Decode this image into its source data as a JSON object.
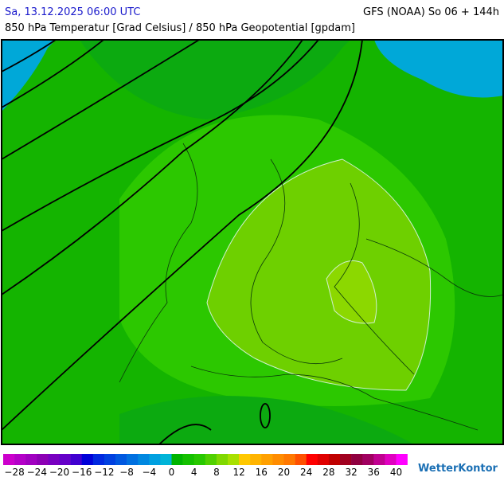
{
  "header": {
    "datetime": "Sa, 13.12.2025 06:00 UTC",
    "model": "GFS (NOAA) So 06 + 144h",
    "subtitle": "850 hPa Temperatur [Grad Celsius] / 850 hPa Geopotential [gpdam]"
  },
  "legend": {
    "start": -30,
    "step": 2,
    "colors": [
      "#cc00cc",
      "#b400c8",
      "#a000c0",
      "#8c00b4",
      "#7800c0",
      "#6400c8",
      "#4000d0",
      "#0000d8",
      "#0028e0",
      "#0040e0",
      "#0058e0",
      "#0070e0",
      "#0088e0",
      "#00a0e0",
      "#00b4d8",
      "#00b400",
      "#14c000",
      "#28c800",
      "#50d000",
      "#80d800",
      "#a8e000",
      "#ffc800",
      "#ffb400",
      "#ffa000",
      "#ff8c00",
      "#ff7800",
      "#ff5000",
      "#ff0000",
      "#e00000",
      "#c00000",
      "#a00020",
      "#900040",
      "#a00060",
      "#c00090",
      "#e000c0",
      "#ff00ff"
    ],
    "ticks": [
      {
        "value": -28,
        "label": "−28"
      },
      {
        "value": -24,
        "label": "−24"
      },
      {
        "value": -20,
        "label": "−20"
      },
      {
        "value": -16,
        "label": "−16"
      },
      {
        "value": -12,
        "label": "−12"
      },
      {
        "value": -8,
        "label": "−8"
      },
      {
        "value": -4,
        "label": "−4"
      },
      0,
      4,
      8,
      12,
      16,
      20,
      24,
      28,
      32,
      36,
      40
    ]
  },
  "brand": "WetterKontor"
}
